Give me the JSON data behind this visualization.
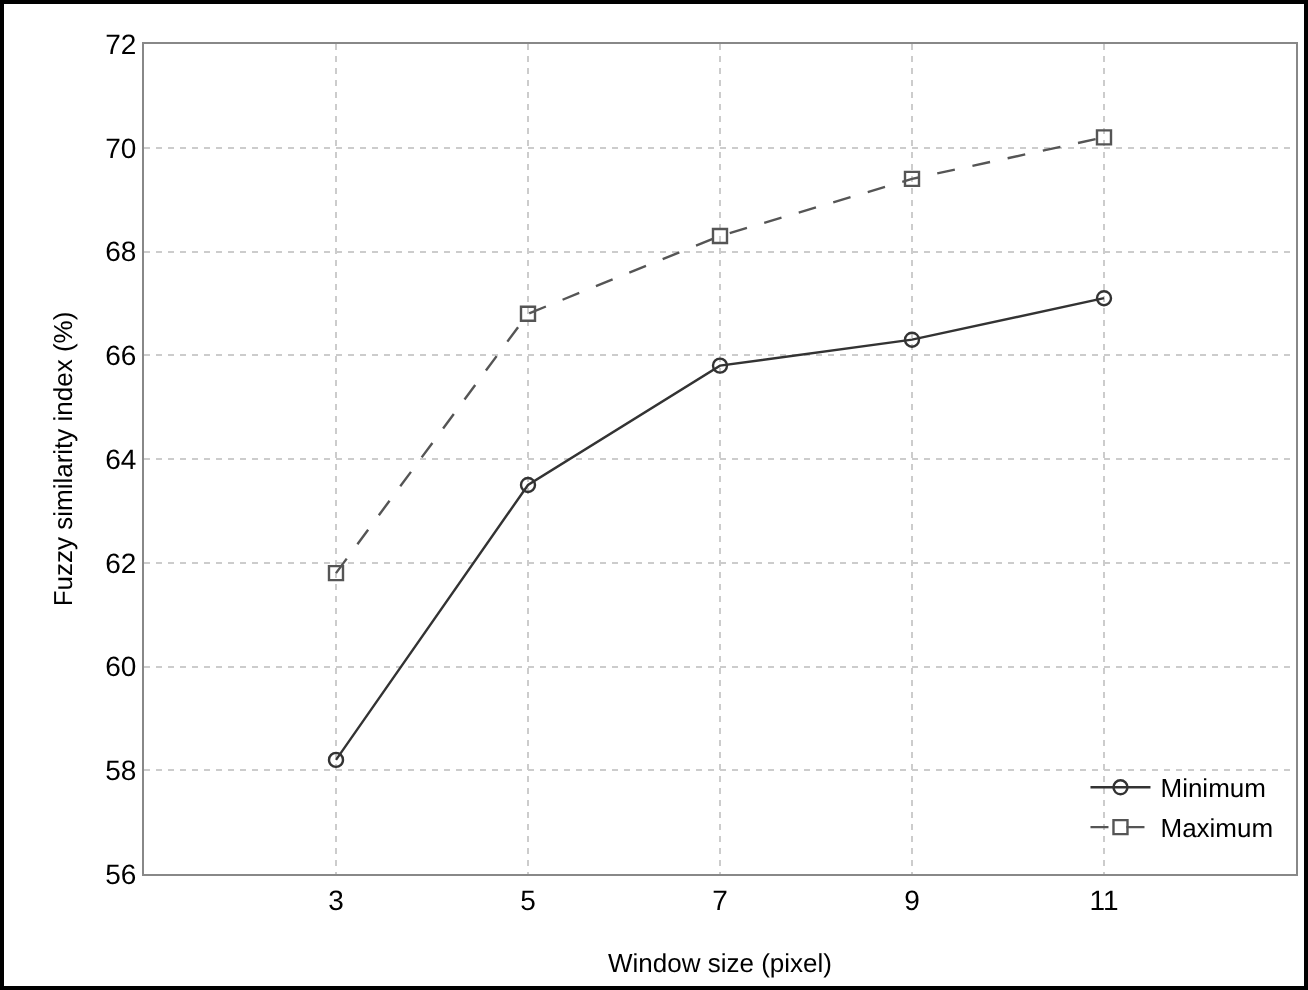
{
  "chart_data": {
    "type": "line",
    "xlabel": "Window size (pixel)",
    "ylabel": "Fuzzy similarity index (%)",
    "x": [
      3,
      5,
      7,
      9,
      11
    ],
    "series": [
      {
        "name": "Minimum",
        "color": "#333333",
        "values": [
          58.2,
          63.5,
          65.8,
          66.3,
          67.1
        ],
        "marker": "circle",
        "line_style": "solid"
      },
      {
        "name": "Maximum",
        "color": "#555555",
        "values": [
          61.8,
          66.8,
          68.3,
          69.4,
          70.2
        ],
        "marker": "square",
        "line_style": "dashed"
      }
    ],
    "xlim": [
      1,
      13
    ],
    "xticks": [
      3,
      5,
      7,
      9,
      11
    ],
    "ylim": [
      56,
      72
    ],
    "yticks": [
      56,
      58,
      60,
      62,
      64,
      66,
      68,
      70,
      72
    ],
    "grid": true,
    "legend": "bottom right"
  }
}
